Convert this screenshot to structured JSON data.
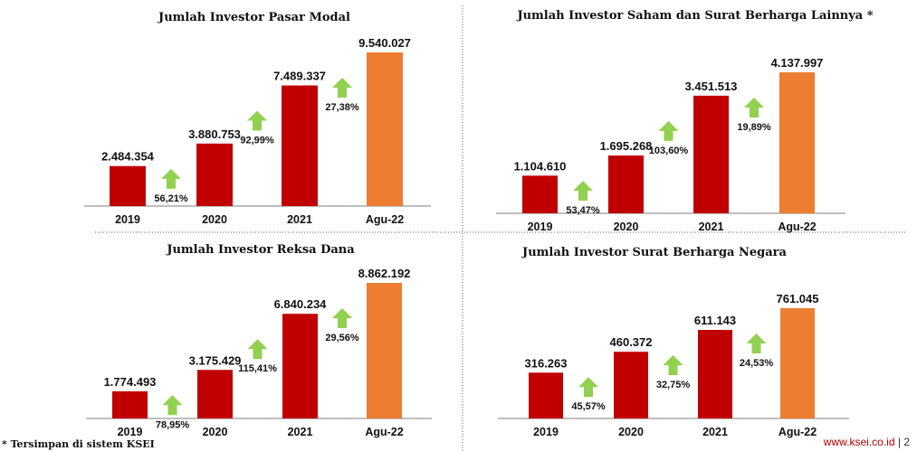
{
  "colors": {
    "bar_main": "#c00000",
    "bar_highlight": "#ed7d31",
    "arrow": "#92d050",
    "axis": "#7f7f7f",
    "divider": "#666666"
  },
  "icons": {
    "growth": "up-arrow-icon"
  },
  "chart_data": [
    {
      "type": "bar",
      "title": "Jumlah Investor Pasar Modal",
      "categories": [
        "2019",
        "2020",
        "2021",
        "Agu-22"
      ],
      "values": [
        2484354,
        3880753,
        7489337,
        9540027
      ],
      "value_labels": [
        "2.484.354",
        "3.880.753",
        "7.489.337",
        "9.540.027"
      ],
      "growth_labels": [
        "56,21%",
        "92,99%",
        "27,38%"
      ]
    },
    {
      "type": "bar",
      "title": "Jumlah Investor Saham dan Surat Berharga Lainnya *",
      "categories": [
        "2019",
        "2020",
        "2021",
        "Agu-22"
      ],
      "values": [
        1104610,
        1695268,
        3451513,
        4137997
      ],
      "value_labels": [
        "1.104.610",
        "1.695.268",
        "3.451.513",
        "4.137.997"
      ],
      "growth_labels": [
        "53,47%",
        "103,60%",
        "19,89%"
      ]
    },
    {
      "type": "bar",
      "title": "Jumlah Investor Reksa Dana",
      "categories": [
        "2019",
        "2020",
        "2021",
        "Agu-22"
      ],
      "values": [
        1774493,
        3175429,
        6840234,
        8862192
      ],
      "value_labels": [
        "1.774.493",
        "3.175.429",
        "6.840.234",
        "8.862.192"
      ],
      "growth_labels": [
        "78,95%",
        "115,41%",
        "29,56%"
      ]
    },
    {
      "type": "bar",
      "title": "Jumlah Investor Surat Berharga Negara",
      "categories": [
        "2019",
        "2020",
        "2021",
        "Agu-22"
      ],
      "values": [
        316263,
        460372,
        611143,
        761045
      ],
      "value_labels": [
        "316.263",
        "460.372",
        "611.143",
        "761.045"
      ],
      "growth_labels": [
        "45,57%",
        "32,75%",
        "24,53%"
      ]
    }
  ],
  "footnote": "* Tersimpan di sistem KSEI",
  "footer": {
    "url": "www.ksei.co.id",
    "separator": "|",
    "page": "2"
  }
}
